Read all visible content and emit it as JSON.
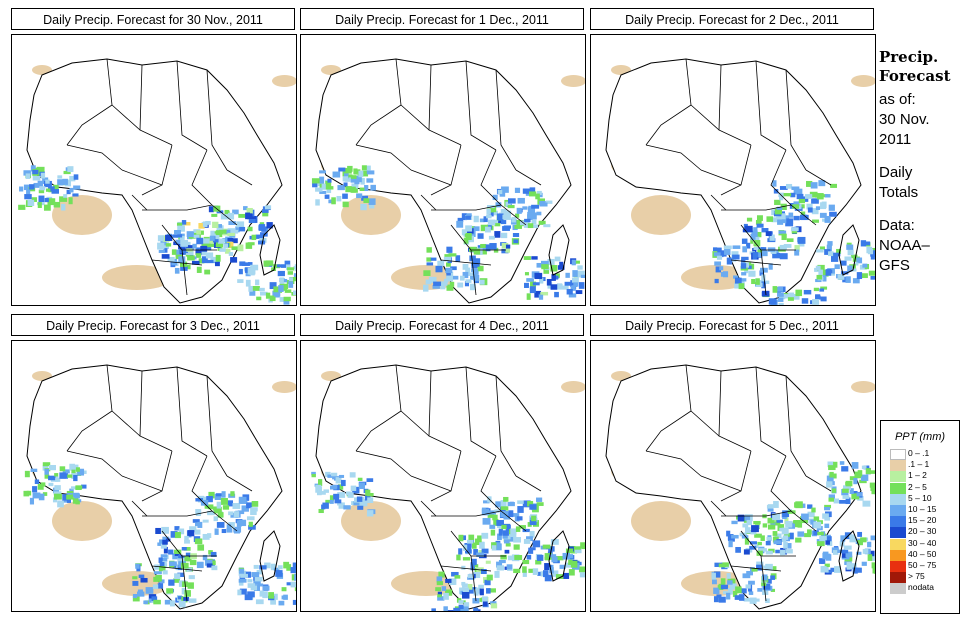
{
  "panels": [
    {
      "title": "Daily Precip. Forecast for  30 Nov., 2011",
      "rain": [
        [
          190,
          205,
          0.75
        ],
        [
          175,
          215,
          0.65
        ],
        [
          225,
          190,
          0.55
        ],
        [
          255,
          245,
          0.5
        ],
        [
          35,
          150,
          0.5
        ]
      ]
    },
    {
      "title": "Daily Precip. Forecast for  1 Dec., 2011",
      "rain": [
        [
          185,
          195,
          0.55
        ],
        [
          150,
          230,
          0.5
        ],
        [
          215,
          170,
          0.45
        ],
        [
          250,
          240,
          0.55
        ],
        [
          40,
          150,
          0.4
        ]
      ]
    },
    {
      "title": "Daily Precip. Forecast for  2 Dec., 2011",
      "rain": [
        [
          180,
          200,
          0.6
        ],
        [
          210,
          165,
          0.5
        ],
        [
          150,
          230,
          0.5
        ],
        [
          250,
          225,
          0.5
        ],
        [
          200,
          270,
          0.55
        ]
      ]
    },
    {
      "title": "Daily Precip. Forecast for  3 Dec., 2011",
      "rain": [
        [
          170,
          205,
          0.6
        ],
        [
          150,
          240,
          0.55
        ],
        [
          210,
          170,
          0.45
        ],
        [
          255,
          240,
          0.5
        ],
        [
          40,
          140,
          0.45
        ]
      ]
    },
    {
      "title": "Daily Precip. Forecast for  4 Dec., 2011",
      "rain": [
        [
          185,
          210,
          0.55
        ],
        [
          160,
          250,
          0.65
        ],
        [
          210,
          175,
          0.45
        ],
        [
          250,
          215,
          0.55
        ],
        [
          40,
          150,
          0.45
        ]
      ]
    },
    {
      "title": "Daily Precip. Forecast for  5 Dec., 2011",
      "rain": [
        [
          165,
          190,
          0.6
        ],
        [
          150,
          240,
          0.5
        ],
        [
          205,
          180,
          0.45
        ],
        [
          255,
          210,
          0.55
        ],
        [
          265,
          140,
          0.5
        ]
      ]
    }
  ],
  "side": {
    "heading1": "Precip.",
    "heading2": "Forecast",
    "line1": "as of:",
    "line2": "30 Nov.",
    "line3": "2011",
    "line4": "Daily",
    "line5": "Totals",
    "line6": "Data:",
    "line7": "NOAA–",
    "line8": "GFS"
  },
  "legend": {
    "title": "PPT (mm)",
    "items": [
      {
        "label": "0 – .1",
        "color": "#ffffff"
      },
      {
        "label": ".1 – 1",
        "color": "#e8cfa8"
      },
      {
        "label": "1 – 2",
        "color": "#b8f0a0"
      },
      {
        "label": "2 – 5",
        "color": "#74e05a"
      },
      {
        "label": "5 – 10",
        "color": "#a8d8f0"
      },
      {
        "label": "10 – 15",
        "color": "#6aaaf0"
      },
      {
        "label": "15 – 20",
        "color": "#3a7ae8"
      },
      {
        "label": "20 – 30",
        "color": "#1a4ad0"
      },
      {
        "label": "30 – 40",
        "color": "#f8d860"
      },
      {
        "label": "40 – 50",
        "color": "#f89820"
      },
      {
        "label": "50 – 75",
        "color": "#e83010"
      },
      {
        "label": "> 75",
        "color": "#a01808"
      },
      {
        "label": "nodata",
        "color": "#cccccc"
      }
    ]
  }
}
